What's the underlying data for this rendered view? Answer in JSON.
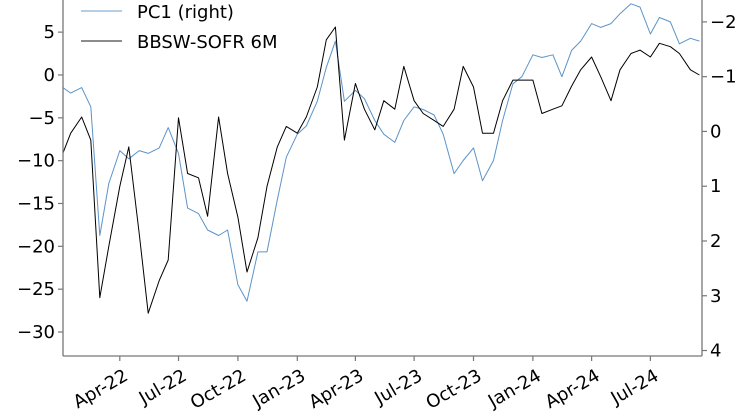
{
  "chart_data": {
    "type": "line",
    "title": "",
    "xlabel": "",
    "ylabel_left": "",
    "ylabel_right": "",
    "x_range": [
      "2022-01-03",
      "2024-09-19"
    ],
    "x_ticks": [
      {
        "date": "2022-04-01",
        "label": "Apr-22"
      },
      {
        "date": "2022-07-01",
        "label": "Jul-22"
      },
      {
        "date": "2022-10-01",
        "label": "Oct-22"
      },
      {
        "date": "2023-01-01",
        "label": "Jan-23"
      },
      {
        "date": "2023-04-01",
        "label": "Apr-23"
      },
      {
        "date": "2023-07-01",
        "label": "Jul-23"
      },
      {
        "date": "2023-10-01",
        "label": "Oct-23"
      },
      {
        "date": "2024-01-01",
        "label": "Jan-24"
      },
      {
        "date": "2024-04-01",
        "label": "Apr-24"
      },
      {
        "date": "2024-07-01",
        "label": "Jul-24"
      }
    ],
    "left_axis": {
      "ylim": [
        -32.8,
        8.75
      ],
      "ticks": [
        5,
        0,
        -5,
        -10,
        -15,
        -20,
        -25,
        -30
      ],
      "tick_labels": [
        "5",
        "0",
        "−5",
        "−10",
        "−15",
        "−20",
        "−25",
        "−30"
      ]
    },
    "right_axis": {
      "ylim": [
        4.1,
        -2.4
      ],
      "inverted": true,
      "ticks": [
        -2,
        -1,
        0,
        1,
        2,
        3,
        4
      ],
      "tick_labels": [
        "−2",
        "−1",
        "0",
        "1",
        "2",
        "3",
        "4"
      ]
    },
    "grid": false,
    "legend": {
      "placement": "top-left",
      "frame": false
    },
    "dates": [
      "2022-01-03",
      "2022-01-15",
      "2022-02-01",
      "2022-02-15",
      "2022-03-01",
      "2022-03-15",
      "2022-04-01",
      "2022-04-15",
      "2022-05-01",
      "2022-05-15",
      "2022-06-01",
      "2022-06-15",
      "2022-07-01",
      "2022-07-15",
      "2022-08-01",
      "2022-08-15",
      "2022-09-01",
      "2022-09-15",
      "2022-10-01",
      "2022-10-15",
      "2022-11-01",
      "2022-11-15",
      "2022-12-01",
      "2022-12-15",
      "2023-01-01",
      "2023-01-15",
      "2023-02-01",
      "2023-02-15",
      "2023-03-01",
      "2023-03-15",
      "2023-04-01",
      "2023-04-15",
      "2023-05-01",
      "2023-05-15",
      "2023-06-01",
      "2023-06-15",
      "2023-07-01",
      "2023-07-15",
      "2023-08-01",
      "2023-08-15",
      "2023-09-01",
      "2023-09-15",
      "2023-10-01",
      "2023-10-15",
      "2023-11-01",
      "2023-11-15",
      "2023-12-01",
      "2023-12-15",
      "2024-01-01",
      "2024-01-15",
      "2024-02-01",
      "2024-02-15",
      "2024-03-01",
      "2024-03-15",
      "2024-04-01",
      "2024-04-15",
      "2024-05-01",
      "2024-05-15",
      "2024-06-01",
      "2024-06-15",
      "2024-07-01",
      "2024-07-15",
      "2024-08-01",
      "2024-08-15",
      "2024-09-01",
      "2024-09-15"
    ],
    "series": [
      {
        "name": "PC1 (right)",
        "axis": "right",
        "color": "#5b93c9",
        "values": [
          -0.8,
          -0.7,
          -0.8,
          -0.45,
          1.9,
          0.95,
          0.35,
          0.5,
          0.35,
          0.4,
          0.3,
          -0.07,
          0.4,
          1.4,
          1.5,
          1.8,
          1.9,
          1.8,
          2.8,
          3.1,
          2.2,
          2.2,
          1.25,
          0.47,
          0.05,
          -0.1,
          -0.55,
          -1.17,
          -1.65,
          -0.55,
          -0.75,
          -0.6,
          -0.2,
          0.05,
          0.2,
          -0.2,
          -0.45,
          -0.4,
          -0.3,
          0.05,
          0.77,
          0.53,
          0.3,
          0.9,
          0.53,
          -0.2,
          -0.87,
          -1.0,
          -1.4,
          -1.35,
          -1.4,
          -1.0,
          -1.48,
          -1.65,
          -1.97,
          -1.9,
          -1.97,
          -2.15,
          -2.33,
          -2.27,
          -1.78,
          -2.08,
          -2.0,
          -1.6,
          -1.7,
          -1.65
        ]
      },
      {
        "name": "BBSW-SOFR 6M",
        "axis": "left",
        "color": "#000000",
        "values": [
          -9.1,
          -6.8,
          -4.9,
          -7.6,
          -26,
          -20,
          -13,
          -8.4,
          -18.5,
          -27.8,
          -24,
          -21.6,
          -5,
          -11.5,
          -12,
          -16.5,
          -4.9,
          -11.5,
          -16.6,
          -23,
          -19,
          -13,
          -8.4,
          -6,
          -6.8,
          -4.9,
          -1.4,
          4.1,
          5.6,
          -7.6,
          -1,
          -4,
          -6.4,
          -3,
          -4,
          1,
          -3,
          -4.5,
          -5.3,
          -6,
          -4,
          1,
          -1.4,
          -6.8,
          -6.8,
          -3,
          -0.6,
          -0.6,
          -0.6,
          -4.5,
          -4,
          -3.6,
          -1.3,
          0.6,
          2.1,
          -0.2,
          -3,
          0.6,
          2.5,
          2.9,
          2.1,
          3.7,
          3.3,
          2.5,
          0.6,
          0
        ]
      }
    ]
  }
}
